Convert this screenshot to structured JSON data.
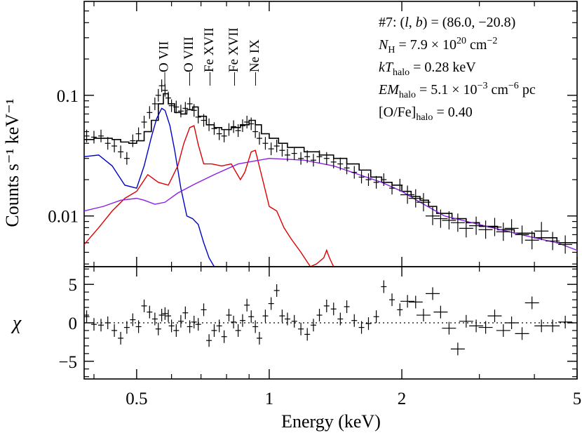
{
  "chart_data": [
    {
      "type": "scatter",
      "panel": "spectrum",
      "xlabel": "",
      "ylabel": "Counts s⁻¹ keV⁻¹",
      "xscale": "log",
      "yscale": "log",
      "xlim": [
        0.38,
        5.0
      ],
      "ylim": [
        0.0038,
        0.6
      ],
      "yticks": [
        0.01,
        0.1
      ],
      "yticklabels": [
        "0.01",
        "0.1"
      ],
      "annotations": [
        {
          "text": "#7: (l, b) = (86.0, −20.8)"
        },
        {
          "text": "N_H = 7.9 × 10^20 cm^−2"
        },
        {
          "text": "kT_halo = 0.28 keV"
        },
        {
          "text": "EM_halo = 5.1 × 10^−3 cm^−6 pc"
        },
        {
          "text": "[O/Fe]_halo = 0.40"
        }
      ],
      "line_labels": [
        {
          "text": "O VII",
          "energy": 0.574
        },
        {
          "text": "O VIII",
          "energy": 0.654
        },
        {
          "text": "Fe XVII",
          "energy": 0.727
        },
        {
          "text": "Fe XVII",
          "energy": 0.826
        },
        {
          "text": "Ne IX",
          "energy": 0.922
        }
      ],
      "data_points": [
        [
          0.385,
          0.046
        ],
        [
          0.4,
          0.045
        ],
        [
          0.415,
          0.046
        ],
        [
          0.43,
          0.04
        ],
        [
          0.445,
          0.038
        ],
        [
          0.46,
          0.034
        ],
        [
          0.475,
          0.03
        ],
        [
          0.49,
          0.042
        ],
        [
          0.505,
          0.048
        ],
        [
          0.52,
          0.06
        ],
        [
          0.535,
          0.072
        ],
        [
          0.55,
          0.085
        ],
        [
          0.56,
          0.1
        ],
        [
          0.57,
          0.12
        ],
        [
          0.58,
          0.11
        ],
        [
          0.59,
          0.095
        ],
        [
          0.6,
          0.082
        ],
        [
          0.615,
          0.08
        ],
        [
          0.63,
          0.074
        ],
        [
          0.645,
          0.078
        ],
        [
          0.66,
          0.085
        ],
        [
          0.675,
          0.075
        ],
        [
          0.69,
          0.066
        ],
        [
          0.71,
          0.062
        ],
        [
          0.73,
          0.057
        ],
        [
          0.75,
          0.053
        ],
        [
          0.77,
          0.048
        ],
        [
          0.79,
          0.046
        ],
        [
          0.81,
          0.052
        ],
        [
          0.83,
          0.055
        ],
        [
          0.85,
          0.051
        ],
        [
          0.87,
          0.056
        ],
        [
          0.89,
          0.06
        ],
        [
          0.91,
          0.058
        ],
        [
          0.93,
          0.05
        ],
        [
          0.95,
          0.044
        ],
        [
          0.98,
          0.04
        ],
        [
          1.01,
          0.036
        ],
        [
          1.04,
          0.038
        ],
        [
          1.07,
          0.035
        ],
        [
          1.1,
          0.032
        ],
        [
          1.14,
          0.033
        ],
        [
          1.18,
          0.03
        ],
        [
          1.22,
          0.031
        ],
        [
          1.26,
          0.029
        ],
        [
          1.3,
          0.031
        ],
        [
          1.35,
          0.03
        ],
        [
          1.4,
          0.028
        ],
        [
          1.45,
          0.027
        ],
        [
          1.5,
          0.025
        ],
        [
          1.56,
          0.023
        ],
        [
          1.62,
          0.021
        ],
        [
          1.68,
          0.02
        ],
        [
          1.75,
          0.019
        ],
        [
          1.82,
          0.02
        ],
        [
          1.9,
          0.017
        ],
        [
          1.98,
          0.018
        ],
        [
          2.06,
          0.015
        ],
        [
          2.15,
          0.014
        ],
        [
          2.24,
          0.013
        ],
        [
          2.35,
          0.01
        ],
        [
          2.45,
          0.0095
        ],
        [
          2.56,
          0.0092
        ],
        [
          2.68,
          0.0088
        ],
        [
          2.8,
          0.0079
        ],
        [
          2.95,
          0.0083
        ],
        [
          3.1,
          0.0077
        ],
        [
          3.25,
          0.0081
        ],
        [
          3.4,
          0.0074
        ],
        [
          3.55,
          0.0079
        ],
        [
          3.75,
          0.007
        ],
        [
          3.95,
          0.0063
        ],
        [
          4.15,
          0.0075
        ],
        [
          4.4,
          0.0062
        ],
        [
          4.7,
          0.0058
        ]
      ],
      "series": [
        {
          "color": "#000000",
          "x": [
            0.38,
            0.4,
            0.42,
            0.44,
            0.46,
            0.48,
            0.5,
            0.52,
            0.54,
            0.56,
            0.575,
            0.59,
            0.61,
            0.63,
            0.65,
            0.67,
            0.69,
            0.72,
            0.75,
            0.78,
            0.82,
            0.86,
            0.9,
            0.93,
            0.96,
            1.0,
            1.05,
            1.1,
            1.2,
            1.3,
            1.4,
            1.5,
            1.6,
            1.7,
            1.8,
            1.9,
            2.0,
            2.1,
            2.2,
            2.3,
            2.4,
            2.6,
            2.8,
            3.0,
            3.3,
            3.6,
            4.0,
            4.5,
            5.0
          ],
          "y": [
            0.043,
            0.044,
            0.044,
            0.043,
            0.041,
            0.04,
            0.042,
            0.05,
            0.062,
            0.085,
            0.103,
            0.085,
            0.072,
            0.07,
            0.076,
            0.08,
            0.067,
            0.057,
            0.054,
            0.052,
            0.054,
            0.057,
            0.062,
            0.057,
            0.048,
            0.044,
            0.04,
            0.037,
            0.034,
            0.032,
            0.03,
            0.027,
            0.024,
            0.021,
            0.019,
            0.018,
            0.016,
            0.0145,
            0.0135,
            0.012,
            0.0105,
            0.0095,
            0.0088,
            0.0082,
            0.0077,
            0.0072,
            0.0066,
            0.006,
            0.0053
          ]
        },
        {
          "color": "#0000cc",
          "x": [
            0.38,
            0.41,
            0.44,
            0.47,
            0.5,
            0.52,
            0.54,
            0.555,
            0.57,
            0.58,
            0.595,
            0.61,
            0.63,
            0.65,
            0.67,
            0.69,
            0.71,
            0.73,
            0.75
          ],
          "y": [
            0.031,
            0.032,
            0.026,
            0.018,
            0.017,
            0.026,
            0.045,
            0.064,
            0.078,
            0.075,
            0.056,
            0.035,
            0.017,
            0.01,
            0.0095,
            0.0085,
            0.006,
            0.0045,
            0.0038
          ]
        },
        {
          "color": "#dd0000",
          "x": [
            0.38,
            0.41,
            0.44,
            0.47,
            0.5,
            0.53,
            0.56,
            0.59,
            0.62,
            0.64,
            0.66,
            0.675,
            0.69,
            0.71,
            0.74,
            0.78,
            0.82,
            0.86,
            0.88,
            0.91,
            0.93,
            0.96,
            1.0,
            1.04,
            1.08,
            1.12,
            1.18,
            1.24,
            1.28,
            1.33,
            1.35,
            1.37,
            1.4
          ],
          "y": [
            0.0058,
            0.008,
            0.011,
            0.014,
            0.016,
            0.022,
            0.019,
            0.018,
            0.026,
            0.04,
            0.054,
            0.056,
            0.039,
            0.027,
            0.027,
            0.026,
            0.027,
            0.02,
            0.023,
            0.034,
            0.035,
            0.022,
            0.012,
            0.011,
            0.008,
            0.0065,
            0.005,
            0.0038,
            0.004,
            0.0045,
            0.0052,
            0.0045,
            0.0038
          ]
        },
        {
          "color": "#8a1ee6",
          "x": [
            0.38,
            0.42,
            0.46,
            0.5,
            0.52,
            0.55,
            0.58,
            0.62,
            0.68,
            0.75,
            0.85,
            1.0,
            1.2,
            1.4,
            1.6,
            1.8,
            2.0,
            2.2,
            2.5,
            3.0,
            3.5,
            4.0,
            4.5,
            5.0
          ],
          "y": [
            0.011,
            0.012,
            0.0135,
            0.014,
            0.0135,
            0.0125,
            0.013,
            0.0155,
            0.0185,
            0.022,
            0.027,
            0.03,
            0.029,
            0.026,
            0.022,
            0.019,
            0.016,
            0.013,
            0.01,
            0.0085,
            0.0074,
            0.0066,
            0.006,
            0.0052
          ]
        }
      ]
    },
    {
      "type": "scatter",
      "panel": "residuals",
      "xlabel": "Energy (keV)",
      "ylabel": "χ",
      "xscale": "log",
      "xlim": [
        0.38,
        5.0
      ],
      "ylim": [
        -7.3,
        7.3
      ],
      "xticks": [
        0.5,
        1,
        2,
        5
      ],
      "xticklabels": [
        "0.5",
        "1",
        "2",
        "5"
      ],
      "yticks": [
        -5,
        0,
        5
      ],
      "yticklabels": [
        "−5",
        "0",
        "5"
      ],
      "zero_line": "dotted",
      "residuals": [
        [
          0.385,
          0.8
        ],
        [
          0.4,
          -0.2
        ],
        [
          0.415,
          -0.3
        ],
        [
          0.43,
          0.0
        ],
        [
          0.445,
          -1.0
        ],
        [
          0.46,
          -2.0
        ],
        [
          0.475,
          -0.6
        ],
        [
          0.49,
          0.4
        ],
        [
          0.505,
          -0.5
        ],
        [
          0.52,
          2.2
        ],
        [
          0.535,
          1.4
        ],
        [
          0.55,
          0.5
        ],
        [
          0.56,
          -0.8
        ],
        [
          0.57,
          1.0
        ],
        [
          0.58,
          1.2
        ],
        [
          0.59,
          0.9
        ],
        [
          0.6,
          -0.4
        ],
        [
          0.615,
          -1.0
        ],
        [
          0.63,
          0.2
        ],
        [
          0.645,
          1.3
        ],
        [
          0.66,
          -0.5
        ],
        [
          0.675,
          0.1
        ],
        [
          0.69,
          -0.2
        ],
        [
          0.71,
          1.7
        ],
        [
          0.73,
          -2.3
        ],
        [
          0.75,
          -1.0
        ],
        [
          0.77,
          -0.4
        ],
        [
          0.79,
          -1.8
        ],
        [
          0.81,
          1.0
        ],
        [
          0.83,
          0.1
        ],
        [
          0.85,
          -1.0
        ],
        [
          0.87,
          0.3
        ],
        [
          0.89,
          2.3
        ],
        [
          0.91,
          0.8
        ],
        [
          0.93,
          -0.5
        ],
        [
          0.95,
          -2.0
        ],
        [
          0.98,
          0.9
        ],
        [
          1.01,
          2.5
        ],
        [
          1.04,
          4.2
        ],
        [
          1.07,
          0.9
        ],
        [
          1.1,
          0.5
        ],
        [
          1.14,
          0.2
        ],
        [
          1.18,
          -0.8
        ],
        [
          1.22,
          -1.5
        ],
        [
          1.26,
          -0.3
        ],
        [
          1.3,
          1.0
        ],
        [
          1.35,
          2.2
        ],
        [
          1.4,
          1.8
        ],
        [
          1.45,
          0.5
        ],
        [
          1.5,
          2.1
        ],
        [
          1.56,
          0.3
        ],
        [
          1.62,
          -0.6
        ],
        [
          1.68,
          -0.1
        ],
        [
          1.75,
          0.8
        ],
        [
          1.82,
          4.7
        ],
        [
          1.9,
          3.0
        ],
        [
          1.98,
          1.7
        ],
        [
          2.06,
          2.8
        ],
        [
          2.15,
          2.7
        ],
        [
          2.24,
          1.0
        ],
        [
          2.35,
          3.8
        ],
        [
          2.45,
          1.4
        ],
        [
          2.56,
          -0.7
        ],
        [
          2.68,
          -3.4
        ],
        [
          2.8,
          0.2
        ],
        [
          2.95,
          -0.4
        ],
        [
          3.1,
          -0.6
        ],
        [
          3.25,
          0.9
        ],
        [
          3.4,
          -1.0
        ],
        [
          3.55,
          0.0
        ],
        [
          3.75,
          -1.4
        ],
        [
          3.95,
          2.6
        ],
        [
          4.15,
          -0.4
        ],
        [
          4.4,
          -0.4
        ],
        [
          4.7,
          0.1
        ]
      ]
    }
  ]
}
